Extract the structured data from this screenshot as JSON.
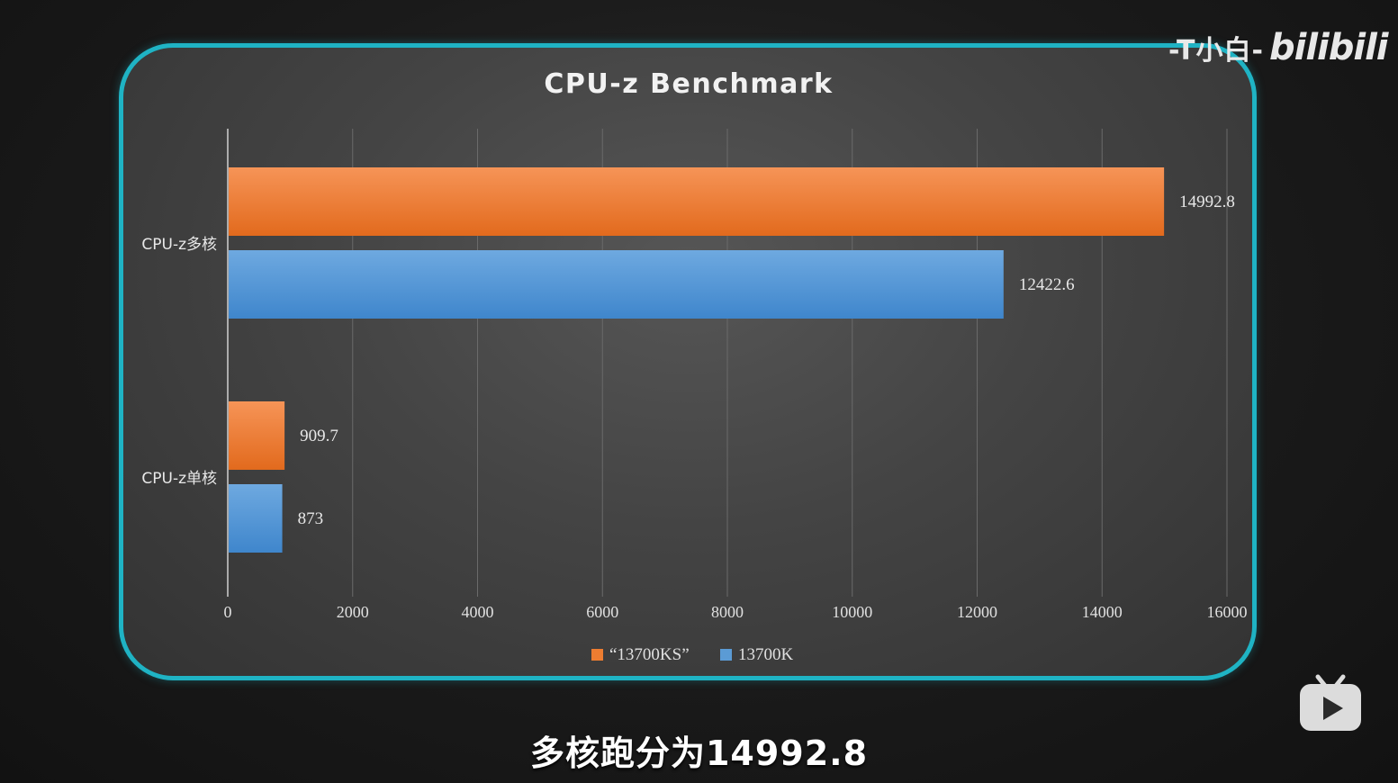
{
  "watermark": {
    "author": "-T小白-",
    "brand": "bilibili"
  },
  "subtitle": "多核跑分为14992.8",
  "colors": {
    "frame": "#1fb3c4",
    "series_ks": "#ed7d31",
    "series_k": "#5b9bd5"
  },
  "icons": {
    "tv": "bilibili-tv-icon"
  },
  "chart_data": {
    "type": "bar",
    "orientation": "horizontal",
    "title": "CPU-z Benchmark",
    "categories": [
      "CPU-z多核",
      "CPU-z单核"
    ],
    "series": [
      {
        "name": "“13700KS”",
        "values": [
          14992.8,
          909.7
        ],
        "labels": [
          "14992.8",
          "909.7"
        ]
      },
      {
        "name": "13700K",
        "values": [
          12422.6,
          873
        ],
        "labels": [
          "12422.6",
          "873"
        ]
      }
    ],
    "xlim": [
      0,
      16000
    ],
    "xticks": [
      0,
      2000,
      4000,
      6000,
      8000,
      10000,
      12000,
      14000,
      16000
    ],
    "grid": true,
    "legend": "bottom"
  }
}
